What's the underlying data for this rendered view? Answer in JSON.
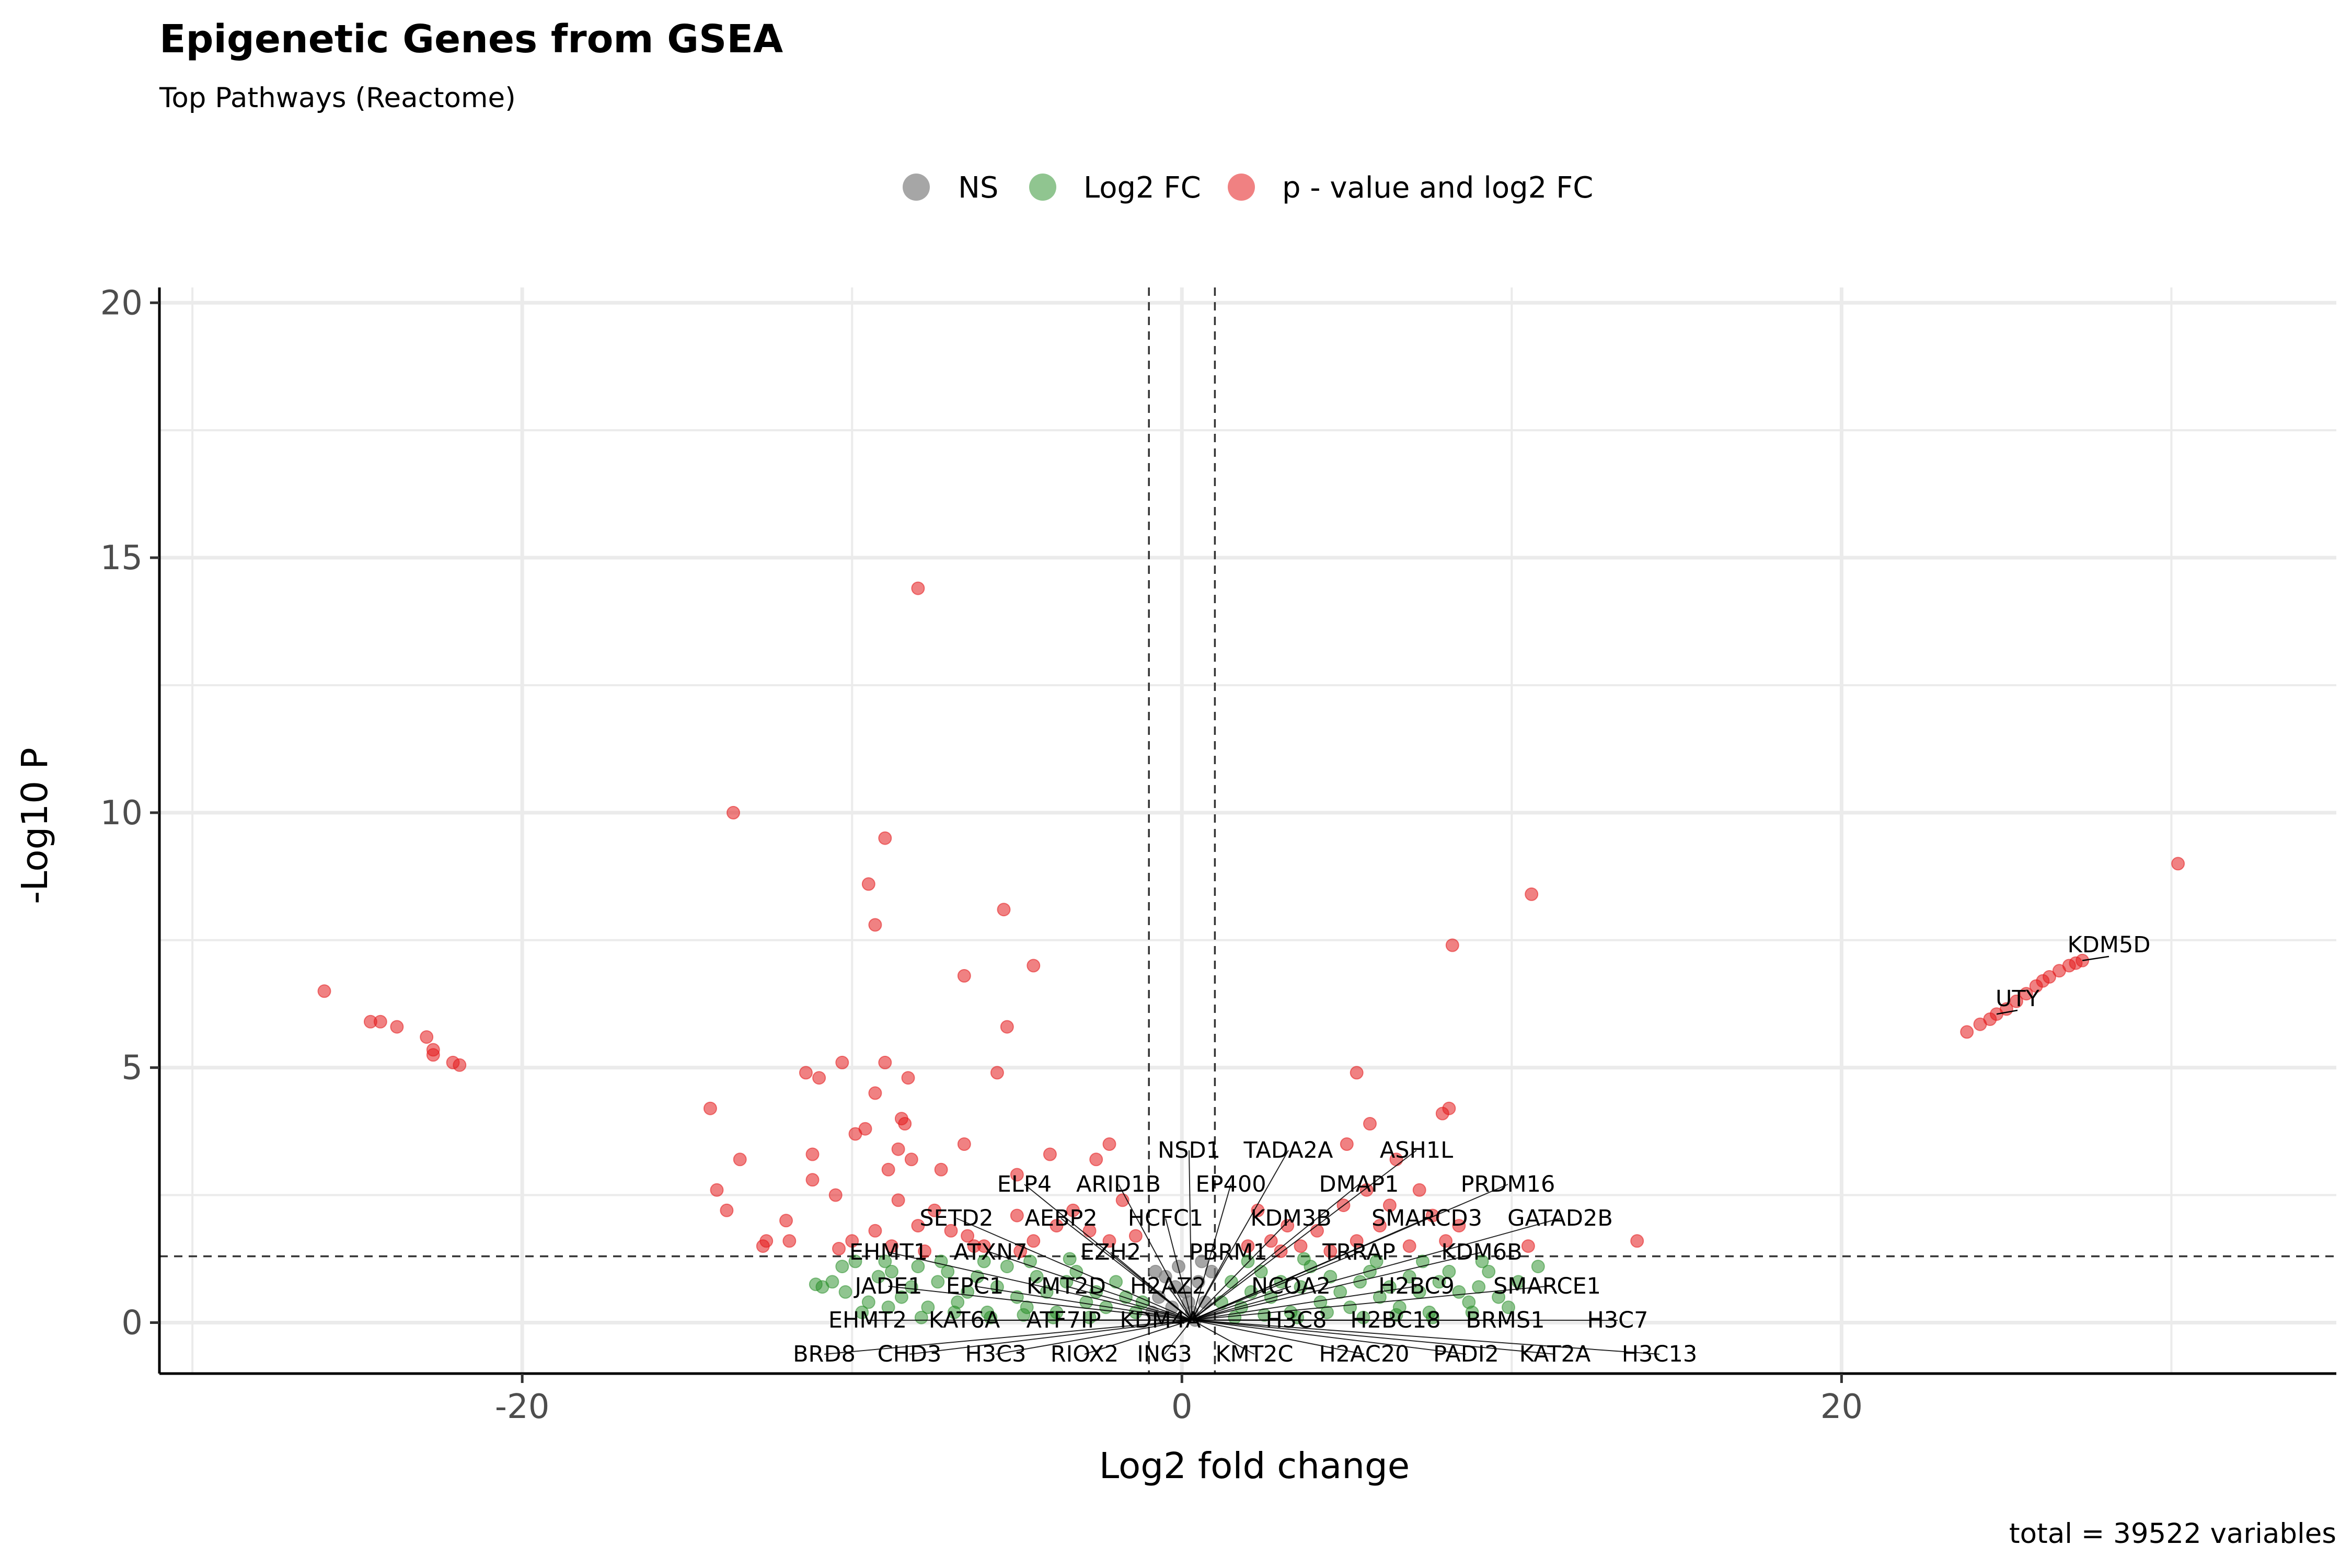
{
  "chart_data": {
    "type": "scatter",
    "title": "Epigenetic Genes from GSEA",
    "subtitle": "Top Pathways (Reactome)",
    "xlabel": "Log2 fold change",
    "ylabel": "-Log10 P",
    "caption": "total = 39522 variables",
    "xlim": [
      -31,
      35
    ],
    "ylim": [
      -1,
      20.3
    ],
    "xticks": [
      -20,
      0,
      20
    ],
    "yticks": [
      0,
      5,
      10,
      15,
      20
    ],
    "grid": true,
    "legend_position": "top",
    "fc_cutoff": 1,
    "p_cutoff_log10": 1.3,
    "colors": {
      "NS": "#808080",
      "Log2FC": "#228b22",
      "P_and_Log2FC": "#e31a1c",
      "text": "#000000",
      "grid": "#ebebeb"
    },
    "legend": [
      {
        "key": "NS",
        "label": "NS"
      },
      {
        "key": "Log2FC",
        "label": "Log2 FC"
      },
      {
        "key": "P_and_Log2FC",
        "label": "p - value and log2 FC"
      }
    ],
    "series": [
      {
        "name": "p - value and log2 FC",
        "key": "P_and_Log2FC",
        "points": [
          [
            -26.0,
            6.5
          ],
          [
            -24.6,
            5.9
          ],
          [
            -24.3,
            5.9
          ],
          [
            -23.8,
            5.8
          ],
          [
            -22.9,
            5.6
          ],
          [
            -22.7,
            5.35
          ],
          [
            -22.7,
            5.25
          ],
          [
            -22.1,
            5.1
          ],
          [
            -21.9,
            5.05
          ],
          [
            -14.3,
            4.2
          ],
          [
            -14.1,
            2.6
          ],
          [
            -13.8,
            2.2
          ],
          [
            -13.4,
            3.2
          ],
          [
            -13.6,
            10.0
          ],
          [
            -12.0,
            2.0
          ],
          [
            -11.9,
            1.6
          ],
          [
            -11.4,
            4.9
          ],
          [
            -11.2,
            3.3
          ],
          [
            -11.2,
            2.8
          ],
          [
            -11.0,
            4.8
          ],
          [
            -10.5,
            2.5
          ],
          [
            -10.3,
            5.1
          ],
          [
            -9.9,
            3.7
          ],
          [
            -9.6,
            3.8
          ],
          [
            -9.3,
            4.5
          ],
          [
            -9.0,
            5.1
          ],
          [
            -8.9,
            3.0
          ],
          [
            -8.6,
            3.4
          ],
          [
            -8.5,
            4.0
          ],
          [
            -8.4,
            3.9
          ],
          [
            -8.3,
            4.8
          ],
          [
            -8.2,
            3.2
          ],
          [
            -8.0,
            14.4
          ],
          [
            -9.0,
            9.5
          ],
          [
            -9.5,
            8.6
          ],
          [
            -9.3,
            7.8
          ],
          [
            -6.6,
            6.8
          ],
          [
            -5.4,
            8.1
          ],
          [
            -4.5,
            7.0
          ],
          [
            -5.3,
            5.8
          ],
          [
            -5.6,
            4.9
          ],
          [
            -6.6,
            3.5
          ],
          [
            -7.3,
            3.0
          ],
          [
            -5.0,
            2.9
          ],
          [
            -4.0,
            3.3
          ],
          [
            -2.6,
            3.2
          ],
          [
            -2.2,
            3.5
          ],
          [
            -8.6,
            2.4
          ],
          [
            -8.0,
            1.9
          ],
          [
            -7.5,
            2.2
          ],
          [
            -7.0,
            1.8
          ],
          [
            -6.5,
            1.7
          ],
          [
            -6.0,
            1.5
          ],
          [
            -5.0,
            2.1
          ],
          [
            -4.5,
            1.6
          ],
          [
            -3.8,
            1.9
          ],
          [
            -3.3,
            2.2
          ],
          [
            -2.8,
            1.8
          ],
          [
            -2.2,
            1.6
          ],
          [
            -1.8,
            2.4
          ],
          [
            -1.4,
            1.7
          ],
          [
            -10.0,
            1.6
          ],
          [
            -9.3,
            1.8
          ],
          [
            -8.8,
            1.5
          ],
          [
            -7.8,
            1.4
          ],
          [
            -12.7,
            1.5
          ],
          [
            -12.6,
            1.6
          ],
          [
            -10.4,
            1.45
          ],
          [
            -6.3,
            1.5
          ],
          [
            -4.9,
            1.4
          ],
          [
            2.3,
            2.2
          ],
          [
            2.7,
            1.6
          ],
          [
            3.2,
            1.9
          ],
          [
            3.6,
            1.5
          ],
          [
            4.1,
            1.8
          ],
          [
            4.5,
            1.4
          ],
          [
            4.9,
            2.3
          ],
          [
            5.3,
            1.6
          ],
          [
            5.6,
            2.6
          ],
          [
            6.0,
            1.9
          ],
          [
            6.3,
            2.3
          ],
          [
            6.5,
            3.2
          ],
          [
            6.9,
            1.5
          ],
          [
            7.2,
            2.6
          ],
          [
            7.6,
            2.1
          ],
          [
            8.0,
            1.6
          ],
          [
            8.4,
            1.9
          ],
          [
            5.0,
            3.5
          ],
          [
            5.7,
            3.9
          ],
          [
            5.3,
            4.9
          ],
          [
            7.9,
            4.1
          ],
          [
            8.1,
            4.2
          ],
          [
            8.2,
            7.4
          ],
          [
            10.6,
            8.4
          ],
          [
            10.5,
            1.5
          ],
          [
            13.8,
            1.6
          ],
          [
            2.0,
            1.5
          ],
          [
            3.0,
            1.4
          ],
          [
            23.8,
            5.7
          ],
          [
            24.2,
            5.85
          ],
          [
            24.5,
            5.95
          ],
          [
            24.7,
            6.05
          ],
          [
            25.0,
            6.15
          ],
          [
            25.3,
            6.3
          ],
          [
            25.6,
            6.45
          ],
          [
            25.9,
            6.6
          ],
          [
            26.1,
            6.7
          ],
          [
            26.3,
            6.78
          ],
          [
            26.6,
            6.9
          ],
          [
            26.9,
            7.0
          ],
          [
            27.1,
            7.05
          ],
          [
            27.3,
            7.1
          ],
          [
            30.2,
            9.0
          ]
        ]
      },
      {
        "name": "Log2 FC",
        "key": "Log2FC",
        "points": [
          [
            -10.6,
            0.8
          ],
          [
            -10.3,
            1.1
          ],
          [
            -10.2,
            0.6
          ],
          [
            -9.9,
            1.2
          ],
          [
            -9.5,
            0.4
          ],
          [
            -9.2,
            0.9
          ],
          [
            -8.8,
            1.0
          ],
          [
            -8.5,
            0.5
          ],
          [
            -8.2,
            0.7
          ],
          [
            -8.0,
            1.1
          ],
          [
            -7.7,
            0.3
          ],
          [
            -7.4,
            0.8
          ],
          [
            -7.1,
            1.0
          ],
          [
            -6.8,
            0.4
          ],
          [
            -6.5,
            0.6
          ],
          [
            -6.2,
            0.9
          ],
          [
            -5.9,
            0.2
          ],
          [
            -5.6,
            0.7
          ],
          [
            -5.3,
            1.1
          ],
          [
            -5.0,
            0.5
          ],
          [
            -4.7,
            0.3
          ],
          [
            -4.4,
            0.9
          ],
          [
            -4.1,
            0.6
          ],
          [
            -3.8,
            0.2
          ],
          [
            -3.5,
            0.8
          ],
          [
            -3.2,
            1.0
          ],
          [
            -2.9,
            0.4
          ],
          [
            -2.6,
            0.6
          ],
          [
            -2.3,
            0.3
          ],
          [
            -2.0,
            0.8
          ],
          [
            -1.7,
            0.5
          ],
          [
            -1.4,
            0.2
          ],
          [
            -1.2,
            0.4
          ],
          [
            -9.7,
            0.2
          ],
          [
            -8.9,
            0.3
          ],
          [
            -7.9,
            0.1
          ],
          [
            -6.9,
            0.2
          ],
          [
            -5.8,
            0.1
          ],
          [
            -4.8,
            0.15
          ],
          [
            -3.9,
            0.1
          ],
          [
            -2.8,
            0.1
          ],
          [
            -10.9,
            0.7
          ],
          [
            -9.0,
            1.2
          ],
          [
            -7.3,
            1.2
          ],
          [
            -6.0,
            1.2
          ],
          [
            -4.6,
            1.2
          ],
          [
            -3.4,
            1.25
          ],
          [
            -11.1,
            0.75
          ],
          [
            1.2,
            0.4
          ],
          [
            1.5,
            0.8
          ],
          [
            1.8,
            0.3
          ],
          [
            2.1,
            0.6
          ],
          [
            2.4,
            1.0
          ],
          [
            2.7,
            0.5
          ],
          [
            3.0,
            0.8
          ],
          [
            3.3,
            0.2
          ],
          [
            3.6,
            0.7
          ],
          [
            3.9,
            1.1
          ],
          [
            4.2,
            0.4
          ],
          [
            4.5,
            0.9
          ],
          [
            4.8,
            0.6
          ],
          [
            5.1,
            0.3
          ],
          [
            5.4,
            0.8
          ],
          [
            5.7,
            1.0
          ],
          [
            6.0,
            0.5
          ],
          [
            6.3,
            0.7
          ],
          [
            6.6,
            0.3
          ],
          [
            6.9,
            0.9
          ],
          [
            7.2,
            0.6
          ],
          [
            7.5,
            0.2
          ],
          [
            7.8,
            0.8
          ],
          [
            8.1,
            1.0
          ],
          [
            8.4,
            0.6
          ],
          [
            8.7,
            0.4
          ],
          [
            9.0,
            0.7
          ],
          [
            9.3,
            1.0
          ],
          [
            9.6,
            0.5
          ],
          [
            9.9,
            0.3
          ],
          [
            10.2,
            0.8
          ],
          [
            10.8,
            1.1
          ],
          [
            1.6,
            0.1
          ],
          [
            2.5,
            0.15
          ],
          [
            3.5,
            0.1
          ],
          [
            4.4,
            0.2
          ],
          [
            5.5,
            0.1
          ],
          [
            6.5,
            0.15
          ],
          [
            7.6,
            0.1
          ],
          [
            8.8,
            0.2
          ],
          [
            2.0,
            1.2
          ],
          [
            3.7,
            1.25
          ],
          [
            5.9,
            1.2
          ],
          [
            7.3,
            1.2
          ],
          [
            9.1,
            1.2
          ]
        ]
      },
      {
        "name": "NS",
        "key": "NS",
        "points": [
          [
            -0.9,
            0.2
          ],
          [
            -0.7,
            0.5
          ],
          [
            -0.5,
            0.9
          ],
          [
            -0.3,
            0.3
          ],
          [
            -0.1,
            1.1
          ],
          [
            0.1,
            0.6
          ],
          [
            0.3,
            0.2
          ],
          [
            0.5,
            0.8
          ],
          [
            0.7,
            0.4
          ],
          [
            0.9,
            1.0
          ],
          [
            -0.6,
            0.1
          ],
          [
            0.4,
            0.05
          ],
          [
            -0.2,
            0.7
          ],
          [
            0.6,
            1.2
          ],
          [
            -0.8,
            1.0
          ],
          [
            0.2,
            0.4
          ]
        ]
      }
    ],
    "labels": [
      {
        "text": "KDM5D",
        "x": 27.3,
        "y": 7.1
      },
      {
        "text": "UTY",
        "x": 24.7,
        "y": 6.05
      },
      {
        "text": "NSD1",
        "x": -0.2,
        "y": 0
      },
      {
        "text": "TADA2A",
        "x": 0.4,
        "y": 0
      },
      {
        "text": "ASH1L",
        "x": 1.0,
        "y": 0
      },
      {
        "text": "ELP4",
        "x": -0.6,
        "y": 0
      },
      {
        "text": "ARID1B",
        "x": -0.3,
        "y": 0
      },
      {
        "text": "EP400",
        "x": 0.1,
        "y": 0
      },
      {
        "text": "DMAP1",
        "x": 0.6,
        "y": 0
      },
      {
        "text": "PRDM16",
        "x": 1.0,
        "y": 0
      },
      {
        "text": "SETD2",
        "x": -0.7,
        "y": 0
      },
      {
        "text": "AEBP2",
        "x": -0.5,
        "y": 0
      },
      {
        "text": "HCFC1",
        "x": -0.2,
        "y": 0
      },
      {
        "text": "KDM3B",
        "x": 0.3,
        "y": 0
      },
      {
        "text": "SMARCD3",
        "x": 0.7,
        "y": 0
      },
      {
        "text": "GATAD2B",
        "x": 1.0,
        "y": 0
      },
      {
        "text": "EHMT1",
        "x": -0.8,
        "y": 0
      },
      {
        "text": "ATXN7",
        "x": -0.6,
        "y": 0
      },
      {
        "text": "EZH2",
        "x": -0.3,
        "y": 0
      },
      {
        "text": "PBRM1",
        "x": 0.2,
        "y": 0
      },
      {
        "text": "TRRAP",
        "x": 0.5,
        "y": 0
      },
      {
        "text": "KDM6B",
        "x": 0.9,
        "y": 0
      },
      {
        "text": "JADE1",
        "x": -0.8,
        "y": 0
      },
      {
        "text": "EPC1",
        "x": -0.6,
        "y": 0
      },
      {
        "text": "KMT2D",
        "x": -0.4,
        "y": 0
      },
      {
        "text": "H2AZ2",
        "x": -0.2,
        "y": 0
      },
      {
        "text": "NCOA2",
        "x": 0.3,
        "y": 0
      },
      {
        "text": "H2BC9",
        "x": 0.6,
        "y": 0
      },
      {
        "text": "SMARCE1",
        "x": 0.9,
        "y": 0
      },
      {
        "text": "EHMT2",
        "x": -0.8,
        "y": 0
      },
      {
        "text": "KAT6A",
        "x": -0.6,
        "y": 0
      },
      {
        "text": "ATF7IP",
        "x": -0.4,
        "y": 0
      },
      {
        "text": "KDM4A",
        "x": -0.1,
        "y": 0
      },
      {
        "text": "H3C8",
        "x": 0.3,
        "y": 0
      },
      {
        "text": "H2BC18",
        "x": 0.5,
        "y": 0
      },
      {
        "text": "BRMS1",
        "x": 0.8,
        "y": 0
      },
      {
        "text": "H3C7",
        "x": 1.0,
        "y": 0
      },
      {
        "text": "BRD8",
        "x": -0.9,
        "y": 0
      },
      {
        "text": "CHD3",
        "x": -0.7,
        "y": 0
      },
      {
        "text": "H3C3",
        "x": -0.5,
        "y": 0
      },
      {
        "text": "RIOX2",
        "x": -0.3,
        "y": 0
      },
      {
        "text": "ING3",
        "x": -0.1,
        "y": 0
      },
      {
        "text": "KMT2C",
        "x": 0.1,
        "y": 0
      },
      {
        "text": "H2AC20",
        "x": 0.4,
        "y": 0
      },
      {
        "text": "PADI2",
        "x": 0.6,
        "y": 0
      },
      {
        "text": "KAT2A",
        "x": 0.8,
        "y": 0
      },
      {
        "text": "H3C13",
        "x": 1.0,
        "y": 0
      }
    ]
  }
}
